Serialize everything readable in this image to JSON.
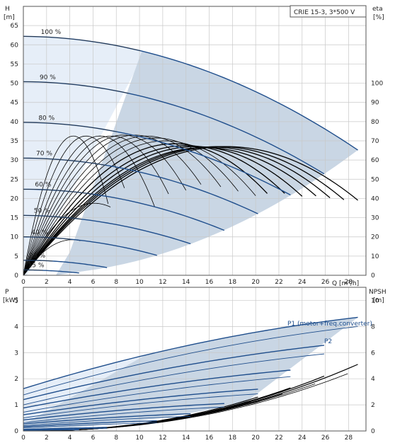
{
  "chart_data": [
    {
      "type": "line",
      "model_label": "CRIE 15-3, 3*500 V",
      "ylabel": "H\n[m]",
      "y2label": "eta\n[%]",
      "xlabel": "Q [m³/h]",
      "xlim": [
        0,
        29.5
      ],
      "ylim": [
        0,
        70
      ],
      "y2lim": [
        0,
        140
      ],
      "x_ticks": [
        0,
        2,
        4,
        6,
        8,
        10,
        12,
        14,
        16,
        18,
        20,
        22,
        24,
        26,
        28
      ],
      "y_ticks": [
        0,
        5,
        10,
        15,
        20,
        25,
        30,
        35,
        40,
        45,
        50,
        55,
        60,
        65
      ],
      "y2_ticks": [
        0,
        10,
        20,
        30,
        40,
        50,
        60,
        70,
        80,
        90,
        100
      ],
      "grid": true,
      "speed_labels": [
        "100 %",
        "90 %",
        "80 %",
        "70 %",
        "60 %",
        "50 %",
        "40 %",
        "25 %",
        "15 %"
      ],
      "speed_fractions": [
        1.0,
        0.9,
        0.8,
        0.7,
        0.6,
        0.5,
        0.4,
        0.25,
        0.15
      ],
      "colors": {
        "qh_curve": "#1f4e8c",
        "eta_curve": "#000000",
        "area": "#c9d6e4",
        "area_light": "#e6eef8",
        "grid": "#c8c8c8"
      },
      "series": [
        {
          "label": "100 %",
          "x": [
            0,
            10,
            20,
            28.8
          ],
          "y": [
            62.2,
            58.5,
            47.2,
            32.6
          ]
        },
        {
          "label": "90 %",
          "x": [
            0,
            9,
            18,
            25.9
          ],
          "y": [
            50.4,
            47.4,
            38.2,
            26.4
          ]
        },
        {
          "label": "80 %",
          "x": [
            0,
            8,
            16,
            23
          ],
          "y": [
            39.8,
            37.4,
            30.2,
            20.9
          ]
        },
        {
          "label": "70 %",
          "x": [
            0,
            7,
            14,
            20.2
          ],
          "y": [
            30.5,
            28.7,
            23.1,
            16
          ]
        },
        {
          "label": "60 %",
          "x": [
            0,
            6,
            12,
            17.3
          ],
          "y": [
            22.4,
            21.1,
            17,
            11.7
          ]
        },
        {
          "label": "50 %",
          "x": [
            0,
            5,
            10,
            14.4
          ],
          "y": [
            15.6,
            14.6,
            11.8,
            8.2
          ]
        },
        {
          "label": "40 %",
          "x": [
            0,
            4,
            8,
            11.5
          ],
          "y": [
            10,
            9.4,
            7.6,
            5.2
          ]
        },
        {
          "label": "25 %",
          "x": [
            0,
            2.5,
            5,
            7.2
          ],
          "y": [
            3.9,
            3.7,
            3,
            2
          ]
        },
        {
          "label": "15 %",
          "x": [
            0,
            1.5,
            3,
            4.8
          ],
          "y": [
            1.4,
            1.3,
            1.1,
            0.6
          ]
        }
      ],
      "eta_curves": [
        {
          "peak_q": 17.5,
          "end_q": 28.8,
          "peak_eta": 67
        },
        {
          "peak_q": 16.8,
          "end_q": 27.6,
          "peak_eta": 67
        },
        {
          "peak_q": 16.2,
          "end_q": 26.4,
          "peak_eta": 66.8
        },
        {
          "peak_q": 15.6,
          "end_q": 25.2,
          "peak_eta": 66.5
        },
        {
          "peak_q": 14.8,
          "end_q": 24,
          "peak_eta": 67
        },
        {
          "peak_q": 14,
          "end_q": 22.5,
          "peak_eta": 67.5
        },
        {
          "peak_q": 13,
          "end_q": 21,
          "peak_eta": 68.5
        },
        {
          "peak_q": 12.2,
          "end_q": 20,
          "peak_eta": 70
        },
        {
          "peak_q": 11.4,
          "end_q": 18.5,
          "peak_eta": 71.5
        },
        {
          "peak_q": 10.6,
          "end_q": 17,
          "peak_eta": 72.5
        },
        {
          "peak_q": 9.6,
          "end_q": 15.3,
          "peak_eta": 73
        },
        {
          "peak_q": 8.6,
          "end_q": 14,
          "peak_eta": 73
        },
        {
          "peak_q": 7.6,
          "end_q": 12.5,
          "peak_eta": 72.5
        },
        {
          "peak_q": 6.6,
          "end_q": 11.3,
          "peak_eta": 72.5
        },
        {
          "peak_q": 5.4,
          "end_q": 8.7,
          "peak_eta": 72.5
        },
        {
          "peak_q": 4.3,
          "end_q": 7.3,
          "peak_eta": 72.5
        },
        {
          "peak_q": 6.1,
          "end_q": 7.5,
          "peak_eta": 37.5
        },
        {
          "peak_q": 4.2,
          "end_q": 4.9,
          "peak_eta": 18.5
        }
      ]
    },
    {
      "type": "line",
      "ylabel": "P\n[kW]",
      "y2label": "NPSH\n[m]",
      "xlim": [
        0,
        29.5
      ],
      "ylim": [
        0,
        5.5
      ],
      "y2lim": [
        0,
        11
      ],
      "y_ticks": [
        0,
        1,
        2,
        3,
        4,
        5
      ],
      "y2_ticks": [
        0,
        2,
        4,
        6,
        8,
        10
      ],
      "grid": true,
      "annotations": [
        "P1 (motor+freq.converter)",
        "P2"
      ],
      "series": [
        {
          "name": "P1 100 %",
          "x": [
            0,
            10,
            20,
            28.8
          ],
          "y": [
            1.62,
            2.85,
            3.85,
            4.35
          ]
        },
        {
          "name": "P2 100 %",
          "x": [
            0,
            10,
            20,
            28.8
          ],
          "y": [
            1.38,
            2.55,
            3.5,
            4
          ]
        },
        {
          "name": "P1 90 %",
          "x": [
            0,
            9,
            18,
            25.9
          ],
          "y": [
            1.2,
            2.1,
            2.85,
            3.28
          ]
        },
        {
          "name": "P2 90 %",
          "x": [
            0,
            9,
            18,
            25.9
          ],
          "y": [
            1.0,
            1.85,
            2.55,
            2.95
          ]
        },
        {
          "name": "P1 80 %",
          "x": [
            0,
            8,
            16,
            23
          ],
          "y": [
            0.88,
            1.5,
            2.03,
            2.33
          ]
        },
        {
          "name": "P2 80 %",
          "x": [
            0,
            8,
            16,
            23
          ],
          "y": [
            0.72,
            1.3,
            1.8,
            2.08
          ]
        },
        {
          "name": "P1 70 %",
          "x": [
            0,
            7,
            14,
            20.2
          ],
          "y": [
            0.62,
            1.04,
            1.4,
            1.6
          ]
        },
        {
          "name": "P2 70 %",
          "x": [
            0,
            7,
            14,
            20.2
          ],
          "y": [
            0.5,
            0.9,
            1.22,
            1.42
          ]
        },
        {
          "name": "P1 60 %",
          "x": [
            0,
            6,
            12,
            17.3
          ],
          "y": [
            0.42,
            0.7,
            0.93,
            1.05
          ]
        },
        {
          "name": "P2 60 %",
          "x": [
            0,
            6,
            12,
            17.3
          ],
          "y": [
            0.32,
            0.58,
            0.8,
            0.92
          ]
        },
        {
          "name": "P1 50 %",
          "x": [
            0,
            5,
            10,
            14.4
          ],
          "y": [
            0.27,
            0.44,
            0.58,
            0.66
          ]
        },
        {
          "name": "P2 50 %",
          "x": [
            0,
            5,
            10,
            14.4
          ],
          "y": [
            0.2,
            0.36,
            0.48,
            0.56
          ]
        },
        {
          "name": "P1 40 %",
          "x": [
            0,
            4,
            8,
            11.5
          ],
          "y": [
            0.16,
            0.26,
            0.34,
            0.39
          ]
        },
        {
          "name": "P2 40 %",
          "x": [
            0,
            4,
            8,
            11.5
          ],
          "y": [
            0.12,
            0.2,
            0.27,
            0.32
          ]
        },
        {
          "name": "P1 25 %",
          "x": [
            0,
            2.5,
            5,
            7.2
          ],
          "y": [
            0.06,
            0.09,
            0.12,
            0.14
          ]
        },
        {
          "name": "P2 25 %",
          "x": [
            0,
            2.5,
            5,
            7.2
          ],
          "y": [
            0.04,
            0.07,
            0.09,
            0.1
          ]
        },
        {
          "name": "P1 15 %",
          "x": [
            0,
            1.5,
            3,
            4.8
          ],
          "y": [
            0.03,
            0.04,
            0.05,
            0.06
          ]
        },
        {
          "name": "P2 15 %",
          "x": [
            0,
            1.5,
            3,
            4.8
          ],
          "y": [
            0.02,
            0.03,
            0.04,
            0.04
          ]
        }
      ],
      "npsh_curves": [
        {
          "end_q": 28.8,
          "end_npsh": 5.1
        },
        {
          "end_q": 25.9,
          "end_npsh": 4.2
        },
        {
          "end_q": 23,
          "end_npsh": 3.3
        },
        {
          "end_q": 20.2,
          "end_npsh": 2.6
        }
      ]
    }
  ]
}
